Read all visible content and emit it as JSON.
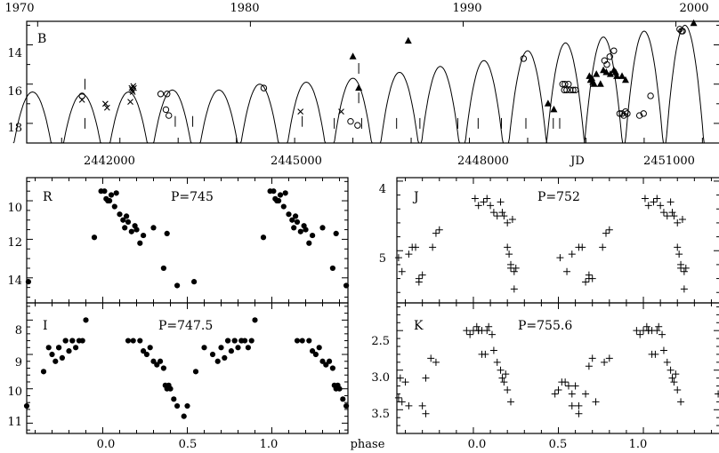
{
  "chart_data": [
    {
      "type": "scatter",
      "panel": "B",
      "label": "B",
      "xlabel": "JD",
      "x_ticks": [
        "2442000",
        "2445000",
        "2448000",
        "2451000"
      ],
      "top_axis_ticks": [
        "1970",
        "1980",
        "1990",
        "2000"
      ],
      "xlim": [
        2440400,
        2452300
      ],
      "y_ticks": [
        "14",
        "16",
        "18"
      ],
      "ylim": [
        19.0,
        12.8
      ],
      "y_inverted": true,
      "series": [
        {
          "marker": "circle",
          "x": [
            2441350,
            2442700,
            2442790,
            2442840,
            2442810,
            2444470,
            2445960,
            2446080,
            2448930,
            2449600,
            2449640,
            2449700,
            2449630,
            2449670,
            2449730,
            2449780,
            2449820,
            2450320,
            2450360,
            2450410,
            2450480,
            2450620,
            2450650,
            2450680,
            2450710,
            2450580,
            2450920,
            2450990,
            2451110,
            2451610,
            2451640,
            2451660
          ],
          "y": [
            16.6,
            16.5,
            17.3,
            17.6,
            16.5,
            16.2,
            17.9,
            18.1,
            14.7,
            16.0,
            16.0,
            16.0,
            16.3,
            16.3,
            16.3,
            16.3,
            16.3,
            14.8,
            15.0,
            14.6,
            14.3,
            17.5,
            17.6,
            17.4,
            17.5,
            17.5,
            17.6,
            17.5,
            16.6,
            13.2,
            13.3,
            13.3
          ]
        },
        {
          "marker": "cross",
          "x": [
            2441350,
            2441750,
            2441780,
            2442200,
            2442210,
            2442230,
            2442220,
            2442240,
            2442180,
            2445100,
            2445800
          ],
          "y": [
            16.8,
            17.0,
            17.2,
            16.2,
            16.3,
            16.1,
            16.4,
            16.2,
            16.9,
            17.4,
            17.4
          ]
        },
        {
          "marker": "triangle",
          "x": [
            2446100,
            2446000,
            2446950,
            2449350,
            2449450,
            2450060,
            2450080,
            2450100,
            2450120,
            2450140,
            2450180,
            2450250,
            2450300,
            2450350,
            2450420,
            2450480,
            2450510,
            2450530,
            2450620,
            2450680,
            2451850
          ],
          "y": [
            16.2,
            14.6,
            13.8,
            17.0,
            17.3,
            15.6,
            15.8,
            15.7,
            15.9,
            16.0,
            15.5,
            16.0,
            15.3,
            15.4,
            15.5,
            15.3,
            15.4,
            15.6,
            15.6,
            15.8,
            12.9
          ]
        },
        {
          "marker": "I-limit",
          "x": [
            2441400,
            2441400,
            2442950,
            2443250,
            2445130,
            2445680,
            2446100,
            2446100,
            2446150,
            2446750,
            2447150,
            2447800,
            2448150,
            2448550,
            2448970,
            2449440,
            2449550
          ],
          "y": [
            16.0,
            18.0,
            17.9,
            17.9,
            17.9,
            18.0,
            15.2,
            16.7,
            18.0,
            18.0,
            18.0,
            18.0,
            18.0,
            18.0,
            18.0,
            18.0,
            18.0
          ]
        }
      ]
    },
    {
      "type": "scatter",
      "panel": "R",
      "label": "R",
      "annotation": "P=745",
      "x_ticks": [
        "0.0",
        "0.5",
        "1.0"
      ],
      "xlim": [
        -0.45,
        1.45
      ],
      "y_ticks": [
        "10",
        "12",
        "14"
      ],
      "ylim": [
        15.3,
        8.8
      ],
      "y_inverted": true,
      "x": [
        -0.44,
        -0.05,
        -0.01,
        0.01,
        0.02,
        0.03,
        0.04,
        0.05,
        0.07,
        0.08,
        0.1,
        0.12,
        0.13,
        0.14,
        0.15,
        0.17,
        0.19,
        0.2,
        0.22,
        0.24,
        0.3,
        0.36,
        0.38,
        0.44,
        0.54,
        0.95,
        0.99,
        1.01,
        1.02,
        1.03,
        1.04,
        1.05,
        1.07,
        1.08,
        1.1,
        1.12,
        1.13,
        1.14,
        1.15,
        1.17,
        1.19,
        1.2,
        1.22,
        1.24,
        1.3,
        1.36,
        1.38,
        1.44
      ],
      "y": [
        14.2,
        11.9,
        9.5,
        9.5,
        9.9,
        10.0,
        10.0,
        9.7,
        10.3,
        9.6,
        10.7,
        11.0,
        11.4,
        10.8,
        11.1,
        11.6,
        11.3,
        11.5,
        12.2,
        11.8,
        11.4,
        13.5,
        11.7,
        14.4,
        14.2,
        11.9,
        9.5,
        9.5,
        9.9,
        10.0,
        10.0,
        9.7,
        10.3,
        9.6,
        10.7,
        11.0,
        11.4,
        10.8,
        11.1,
        11.6,
        11.3,
        11.5,
        12.2,
        11.8,
        11.4,
        13.5,
        11.7,
        14.4
      ]
    },
    {
      "type": "scatter",
      "panel": "I",
      "label": "I",
      "annotation": "P=747.5",
      "xlabel": "phase",
      "x_ticks": [
        "0.0",
        "0.5",
        "1.0"
      ],
      "xlim": [
        -0.45,
        1.45
      ],
      "y_ticks": [
        "8",
        "9",
        "10",
        "11"
      ],
      "ylim": [
        11.3,
        7.5
      ],
      "y_inverted": true,
      "x": [
        -0.45,
        -0.35,
        -0.32,
        -0.3,
        -0.28,
        -0.26,
        -0.24,
        -0.22,
        -0.2,
        -0.18,
        -0.16,
        -0.14,
        -0.12,
        -0.26,
        -0.22,
        -0.18,
        -0.1,
        0.15,
        0.18,
        0.22,
        0.24,
        0.26,
        0.28,
        0.3,
        0.32,
        0.34,
        0.36,
        0.37,
        0.38,
        0.39,
        0.4,
        0.42,
        0.44,
        0.48,
        0.5,
        0.55,
        0.6,
        0.65,
        0.68,
        0.7,
        0.72,
        0.74,
        0.76,
        0.78,
        0.8,
        0.82,
        0.84,
        0.86,
        0.88,
        0.74,
        0.78,
        0.82,
        0.9,
        1.15,
        1.18,
        1.22,
        1.24,
        1.26,
        1.28,
        1.3,
        1.32,
        1.34,
        1.36,
        1.37,
        1.38,
        1.39,
        1.4,
        1.42,
        1.44
      ],
      "y": [
        10.5,
        9.5,
        8.8,
        9.0,
        9.2,
        8.8,
        9.1,
        8.6,
        8.9,
        8.6,
        8.8,
        8.6,
        8.6,
        8.8,
        8.6,
        8.6,
        8.0,
        8.6,
        8.6,
        8.6,
        8.9,
        9.0,
        8.8,
        9.2,
        9.3,
        9.2,
        9.4,
        9.9,
        10.0,
        9.9,
        10.0,
        10.3,
        10.5,
        10.8,
        10.5,
        9.5,
        8.8,
        9.0,
        9.2,
        8.8,
        9.1,
        8.6,
        8.9,
        8.6,
        8.8,
        8.6,
        8.6,
        8.8,
        8.6,
        8.6,
        8.6,
        8.6,
        8.0,
        8.6,
        8.6,
        8.6,
        8.9,
        9.0,
        8.8,
        9.2,
        9.3,
        9.2,
        9.4,
        9.9,
        10.0,
        9.9,
        10.0,
        10.3,
        10.5
      ]
    },
    {
      "type": "scatter",
      "panel": "J",
      "label": "J",
      "annotation": "P=752",
      "x_ticks": [],
      "xlim": [
        -0.45,
        1.45
      ],
      "y_ticks": [
        "4",
        "5"
      ],
      "ylim": [
        5.75,
        3.95
      ],
      "y_inverted": true,
      "x": [
        -0.44,
        -0.42,
        -0.38,
        -0.36,
        -0.34,
        -0.32,
        -0.32,
        -0.3,
        -0.22,
        -0.2,
        -0.24,
        0.01,
        0.03,
        0.06,
        0.08,
        0.1,
        0.12,
        0.14,
        0.16,
        0.17,
        0.18,
        0.2,
        0.2,
        0.21,
        0.22,
        0.22,
        0.23,
        0.24,
        0.25,
        0.24,
        0.51,
        0.55,
        0.58,
        0.62,
        0.64,
        0.66,
        0.68,
        0.68,
        0.7,
        0.78,
        0.8,
        0.76,
        1.01,
        1.03,
        1.06,
        1.08,
        1.1,
        1.12,
        1.14,
        1.16,
        1.17,
        1.18,
        1.2,
        1.2,
        1.21,
        1.22,
        1.22,
        1.23,
        1.24,
        1.25,
        1.24
      ],
      "y": [
        5.1,
        5.3,
        5.05,
        4.95,
        4.95,
        5.45,
        5.4,
        5.35,
        4.75,
        4.7,
        4.95,
        4.25,
        4.35,
        4.3,
        4.25,
        4.35,
        4.45,
        4.5,
        4.3,
        4.45,
        4.5,
        4.6,
        4.95,
        5.05,
        5.2,
        5.25,
        4.55,
        5.3,
        5.25,
        5.55,
        5.1,
        5.3,
        5.05,
        4.95,
        4.95,
        5.45,
        5.4,
        5.35,
        5.4,
        4.75,
        4.7,
        4.95,
        4.25,
        4.35,
        4.3,
        4.25,
        4.35,
        4.45,
        4.5,
        4.3,
        4.45,
        4.5,
        4.6,
        4.95,
        5.05,
        5.2,
        5.25,
        4.55,
        5.3,
        5.25,
        5.55
      ]
    },
    {
      "type": "scatter",
      "panel": "K",
      "label": "K",
      "annotation": "P=755.6",
      "xlabel": "phase",
      "x_ticks": [
        "0.0",
        "0.5",
        "1.0"
      ],
      "xlim": [
        -0.45,
        1.45
      ],
      "y_ticks": [
        "2.5",
        "3.0",
        "3.5"
      ],
      "ylim": [
        3.8,
        2.15
      ],
      "y_inverted": true,
      "x": [
        -0.44,
        -0.43,
        -0.42,
        -0.4,
        -0.38,
        -0.3,
        -0.28,
        -0.28,
        -0.25,
        -0.22,
        -0.04,
        -0.02,
        0.0,
        0.02,
        0.03,
        0.05,
        0.07,
        0.08,
        0.09,
        0.11,
        0.12,
        0.14,
        0.16,
        0.17,
        0.18,
        0.19,
        0.2,
        0.22,
        0.03,
        0.05,
        0.48,
        0.5,
        0.52,
        0.54,
        0.56,
        0.58,
        0.6,
        0.62,
        0.66,
        0.68,
        0.7,
        0.72,
        0.58,
        0.62,
        0.77,
        0.8,
        0.96,
        0.98,
        1.0,
        1.02,
        1.03,
        1.05,
        1.07,
        1.08,
        1.09,
        1.11,
        1.12,
        1.14,
        1.16,
        1.17,
        1.18,
        1.19,
        1.2,
        1.22,
        1.03,
        1.05,
        1.44
      ],
      "y": [
        3.35,
        3.1,
        3.4,
        3.15,
        3.45,
        3.45,
        3.55,
        3.1,
        2.85,
        2.9,
        2.5,
        2.55,
        2.5,
        2.45,
        2.5,
        2.5,
        2.8,
        2.5,
        2.45,
        2.55,
        2.75,
        2.9,
        3.0,
        3.1,
        3.15,
        3.05,
        3.25,
        3.4,
        2.5,
        2.8,
        3.3,
        3.25,
        3.15,
        3.15,
        3.2,
        3.3,
        3.2,
        3.45,
        3.3,
        2.95,
        2.85,
        3.4,
        3.45,
        3.55,
        2.9,
        2.85,
        2.5,
        2.55,
        2.5,
        2.45,
        2.5,
        2.5,
        2.8,
        2.5,
        2.45,
        2.55,
        2.75,
        2.9,
        3.0,
        3.1,
        3.15,
        3.05,
        3.25,
        3.4,
        2.5,
        2.8,
        3.3
      ]
    }
  ],
  "labels": {
    "top_years": [
      "1970",
      "1980",
      "1990",
      "2000"
    ],
    "jd_ticks": [
      "2442000",
      "2445000",
      "2448000",
      "2451000"
    ],
    "jd_label": "JD",
    "phase_label": "phase"
  }
}
